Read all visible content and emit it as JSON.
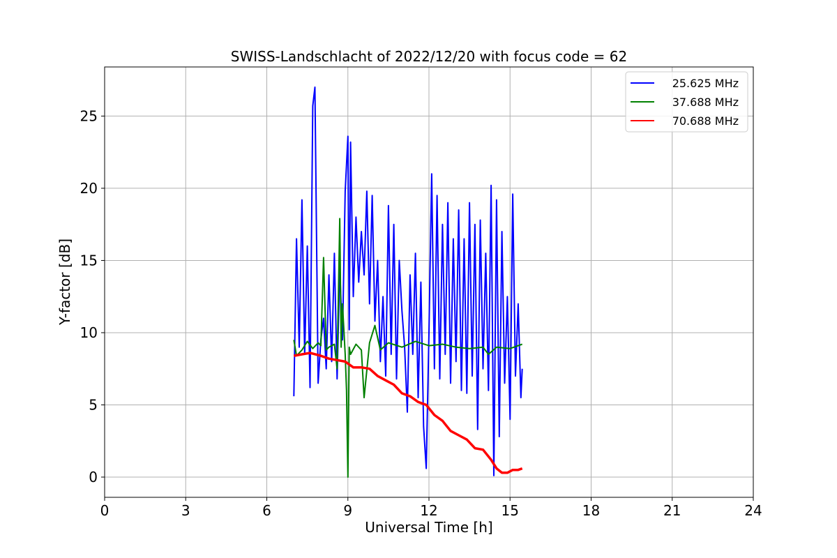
{
  "chart_data": {
    "type": "line",
    "title": "SWISS-Landschlacht of 2022/12/20 with focus code = 62",
    "xlabel": "Universal Time [h]",
    "ylabel": "Y-factor [dB]",
    "xlim": [
      0,
      24
    ],
    "ylim": [
      -1.4,
      28.4
    ],
    "xticks": [
      0,
      3,
      6,
      9,
      12,
      15,
      18,
      21,
      24
    ],
    "yticks": [
      0,
      5,
      10,
      15,
      20,
      25
    ],
    "grid": true,
    "legend_position": "top-right",
    "series": [
      {
        "name": "25.625 MHz",
        "color": "#0000ff",
        "x": [
          7.0,
          7.1,
          7.2,
          7.3,
          7.4,
          7.5,
          7.6,
          7.7,
          7.78,
          7.9,
          8.0,
          8.1,
          8.2,
          8.3,
          8.4,
          8.5,
          8.6,
          8.7,
          8.8,
          8.9,
          9.0,
          9.05,
          9.1,
          9.2,
          9.3,
          9.4,
          9.5,
          9.6,
          9.7,
          9.8,
          9.9,
          10.0,
          10.1,
          10.2,
          10.3,
          10.4,
          10.5,
          10.6,
          10.7,
          10.8,
          10.9,
          11.0,
          11.1,
          11.2,
          11.3,
          11.4,
          11.5,
          11.6,
          11.7,
          11.8,
          11.9,
          12.0,
          12.1,
          12.2,
          12.3,
          12.4,
          12.5,
          12.6,
          12.7,
          12.8,
          12.9,
          13.0,
          13.1,
          13.2,
          13.3,
          13.4,
          13.5,
          13.6,
          13.7,
          13.8,
          13.9,
          14.0,
          14.1,
          14.2,
          14.3,
          14.4,
          14.5,
          14.6,
          14.7,
          14.8,
          14.9,
          15.0,
          15.1,
          15.2,
          15.3,
          15.4,
          15.45
        ],
        "y": [
          5.6,
          16.5,
          9.0,
          19.2,
          8.5,
          16.0,
          6.2,
          25.7,
          27.0,
          6.5,
          9.5,
          11.0,
          7.5,
          14.0,
          8.0,
          15.5,
          6.8,
          14.5,
          9.5,
          19.8,
          23.6,
          10.2,
          23.2,
          12.5,
          18.0,
          13.5,
          17.0,
          14.0,
          19.8,
          12.0,
          19.5,
          10.8,
          15.0,
          8.0,
          12.5,
          7.0,
          18.8,
          8.5,
          17.5,
          6.8,
          15.0,
          11.5,
          9.0,
          4.5,
          14.0,
          8.5,
          15.5,
          5.5,
          13.5,
          3.5,
          0.6,
          10.0,
          21.0,
          7.5,
          19.5,
          6.8,
          17.5,
          8.5,
          19.0,
          6.5,
          16.5,
          8.0,
          18.5,
          6.0,
          16.5,
          5.8,
          19.0,
          7.0,
          17.5,
          3.3,
          17.8,
          7.5,
          15.5,
          6.0,
          20.2,
          0.1,
          19.2,
          2.8,
          17.0,
          6.5,
          12.5,
          4.0,
          19.6,
          7.0,
          12.0,
          5.5,
          7.5
        ]
      },
      {
        "name": "37.688 MHz",
        "color": "#008000",
        "x": [
          7.0,
          7.1,
          7.3,
          7.5,
          7.7,
          7.9,
          8.0,
          8.1,
          8.2,
          8.3,
          8.5,
          8.6,
          8.7,
          8.75,
          8.8,
          8.9,
          8.95,
          9.0,
          9.05,
          9.1,
          9.3,
          9.5,
          9.6,
          9.8,
          10.0,
          10.2,
          10.5,
          11.0,
          11.5,
          12.0,
          12.5,
          13.0,
          13.5,
          14.0,
          14.2,
          14.5,
          15.0,
          15.45
        ],
        "y": [
          9.5,
          8.4,
          8.8,
          9.4,
          8.9,
          9.3,
          9.1,
          15.2,
          8.8,
          9.0,
          9.2,
          7.5,
          17.9,
          9.0,
          12.0,
          8.5,
          6.0,
          0.0,
          9.0,
          8.5,
          9.2,
          8.8,
          5.5,
          9.3,
          10.5,
          8.8,
          9.3,
          9.0,
          9.4,
          9.1,
          9.2,
          9.0,
          8.9,
          9.0,
          8.5,
          9.0,
          8.9,
          9.2
        ]
      },
      {
        "name": "70.688 MHz",
        "color": "#ff0000",
        "x": [
          7.0,
          7.3,
          7.6,
          8.0,
          8.3,
          8.6,
          8.9,
          9.2,
          9.5,
          9.8,
          10.1,
          10.4,
          10.7,
          11.0,
          11.3,
          11.6,
          11.9,
          12.2,
          12.5,
          12.8,
          13.1,
          13.4,
          13.7,
          14.0,
          14.3,
          14.5,
          14.7,
          14.9,
          15.1,
          15.3,
          15.45
        ],
        "y": [
          8.4,
          8.5,
          8.6,
          8.4,
          8.2,
          8.1,
          8.0,
          7.6,
          7.6,
          7.5,
          7.0,
          6.7,
          6.4,
          5.8,
          5.6,
          5.2,
          5.0,
          4.3,
          3.9,
          3.2,
          2.9,
          2.6,
          2.0,
          1.9,
          1.2,
          0.6,
          0.3,
          0.3,
          0.5,
          0.5,
          0.6
        ]
      }
    ]
  }
}
